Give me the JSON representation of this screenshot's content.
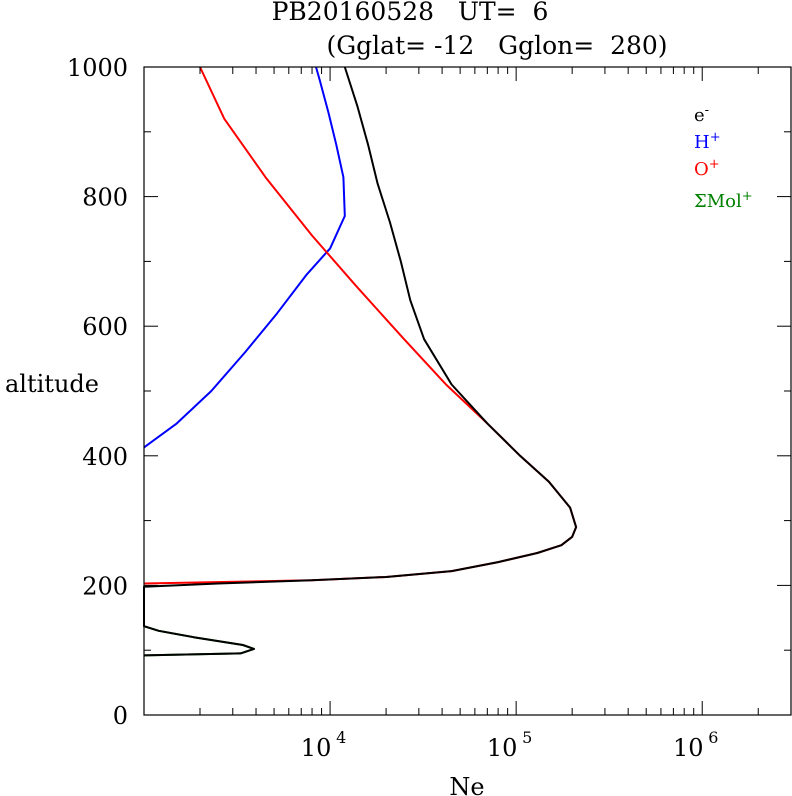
{
  "chart_data": {
    "type": "line",
    "title_line1": "PB20160528   UT=  6",
    "title_line2": "(Gglat= -12   Gglon=  280)",
    "xlabel": "Ne",
    "ylabel": "altitude",
    "x_scale": "log",
    "xlim": [
      1000,
      3000000
    ],
    "ylim": [
      0,
      1000
    ],
    "x_ticks": [
      {
        "base": "10",
        "exp": "4",
        "value": 10000
      },
      {
        "base": "10",
        "exp": "5",
        "value": 100000
      },
      {
        "base": "10",
        "exp": "6",
        "value": 1000000
      }
    ],
    "y_ticks": [
      {
        "label": "0",
        "value": 0
      },
      {
        "label": "200",
        "value": 200
      },
      {
        "label": "400",
        "value": 400
      },
      {
        "label": "600",
        "value": 600
      },
      {
        "label": "800",
        "value": 800
      },
      {
        "label": "1000",
        "value": 1000
      }
    ],
    "legend": [
      {
        "base": "e",
        "sup": "-",
        "color": "#000000"
      },
      {
        "base": "H",
        "sup": "+",
        "color": "#0000ff"
      },
      {
        "base": "O",
        "sup": "+",
        "color": "#ff0000"
      },
      {
        "base": "ΣMol",
        "sup": "+",
        "color": "#008000"
      }
    ],
    "series": [
      {
        "name": "e-",
        "color": "#000000",
        "points": [
          [
            1000,
            92
          ],
          [
            3300,
            95
          ],
          [
            3900,
            102
          ],
          [
            3400,
            108
          ],
          [
            1850,
            120
          ],
          [
            1200,
            130
          ],
          [
            1000,
            137
          ],
          [
            1000,
            198
          ],
          [
            2500,
            203
          ],
          [
            8000,
            208
          ],
          [
            20000,
            213
          ],
          [
            45000,
            222
          ],
          [
            80000,
            236
          ],
          [
            130000,
            250
          ],
          [
            175000,
            262
          ],
          [
            200000,
            275
          ],
          [
            210000,
            290
          ],
          [
            195000,
            320
          ],
          [
            150000,
            360
          ],
          [
            105000,
            400
          ],
          [
            70000,
            450
          ],
          [
            45000,
            510
          ],
          [
            32000,
            580
          ],
          [
            27000,
            640
          ],
          [
            24000,
            700
          ],
          [
            21000,
            760
          ],
          [
            18000,
            820
          ],
          [
            16000,
            880
          ],
          [
            14000,
            940
          ],
          [
            12000,
            1000
          ]
        ]
      },
      {
        "name": "H+",
        "color": "#0000ff",
        "points": [
          [
            1000,
            413
          ],
          [
            1500,
            450
          ],
          [
            2300,
            500
          ],
          [
            3500,
            560
          ],
          [
            5200,
            620
          ],
          [
            7500,
            680
          ],
          [
            10000,
            720
          ],
          [
            12000,
            770
          ],
          [
            11800,
            830
          ],
          [
            10800,
            880
          ],
          [
            9800,
            930
          ],
          [
            8800,
            980
          ],
          [
            8400,
            1000
          ]
        ]
      },
      {
        "name": "O+",
        "color": "#ff0000",
        "points": [
          [
            1000,
            203
          ],
          [
            8000,
            208
          ],
          [
            20000,
            213
          ],
          [
            45000,
            222
          ],
          [
            80000,
            236
          ],
          [
            130000,
            250
          ],
          [
            175000,
            262
          ],
          [
            200000,
            275
          ],
          [
            210000,
            290
          ],
          [
            195000,
            320
          ],
          [
            150000,
            360
          ],
          [
            105000,
            400
          ],
          [
            70000,
            450
          ],
          [
            42000,
            510
          ],
          [
            25000,
            580
          ],
          [
            14000,
            660
          ],
          [
            8000,
            740
          ],
          [
            4500,
            830
          ],
          [
            2700,
            920
          ],
          [
            2000,
            1000
          ]
        ]
      },
      {
        "name": "ΣMol+",
        "color": "#008000",
        "points": [
          [
            1000,
            92
          ],
          [
            3300,
            95
          ],
          [
            3900,
            102
          ],
          [
            3400,
            108
          ],
          [
            1850,
            120
          ],
          [
            1200,
            130
          ],
          [
            1000,
            137
          ]
        ]
      }
    ]
  }
}
